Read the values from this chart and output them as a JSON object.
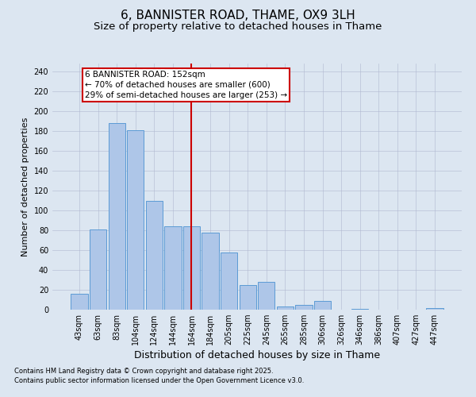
{
  "title": "6, BANNISTER ROAD, THAME, OX9 3LH",
  "subtitle": "Size of property relative to detached houses in Thame",
  "xlabel": "Distribution of detached houses by size in Thame",
  "ylabel": "Number of detached properties",
  "footnote1": "Contains HM Land Registry data © Crown copyright and database right 2025.",
  "footnote2": "Contains public sector information licensed under the Open Government Licence v3.0.",
  "categories": [
    "43sqm",
    "63sqm",
    "83sqm",
    "104sqm",
    "124sqm",
    "144sqm",
    "164sqm",
    "184sqm",
    "205sqm",
    "225sqm",
    "245sqm",
    "265sqm",
    "285sqm",
    "306sqm",
    "326sqm",
    "346sqm",
    "386sqm",
    "407sqm",
    "427sqm",
    "447sqm"
  ],
  "values": [
    16,
    81,
    188,
    181,
    110,
    84,
    84,
    78,
    58,
    25,
    28,
    3,
    5,
    9,
    0,
    1,
    0,
    0,
    0,
    2
  ],
  "bar_color": "#aec6e8",
  "bar_edgecolor": "#5b9bd5",
  "background_color": "#dce6f1",
  "vline_x": 6.0,
  "vline_color": "#cc0000",
  "annotation_text": "6 BANNISTER ROAD: 152sqm\n← 70% of detached houses are smaller (600)\n29% of semi-detached houses are larger (253) →",
  "annotation_box_edgecolor": "#cc0000",
  "annotation_box_facecolor": "#ffffff",
  "ylim": [
    0,
    248
  ],
  "yticks": [
    0,
    20,
    40,
    60,
    80,
    100,
    120,
    140,
    160,
    180,
    200,
    220,
    240
  ],
  "title_fontsize": 11,
  "subtitle_fontsize": 9.5,
  "xlabel_fontsize": 9,
  "ylabel_fontsize": 8,
  "annotation_fontsize": 7.5,
  "tick_fontsize": 7,
  "footnote_fontsize": 6
}
